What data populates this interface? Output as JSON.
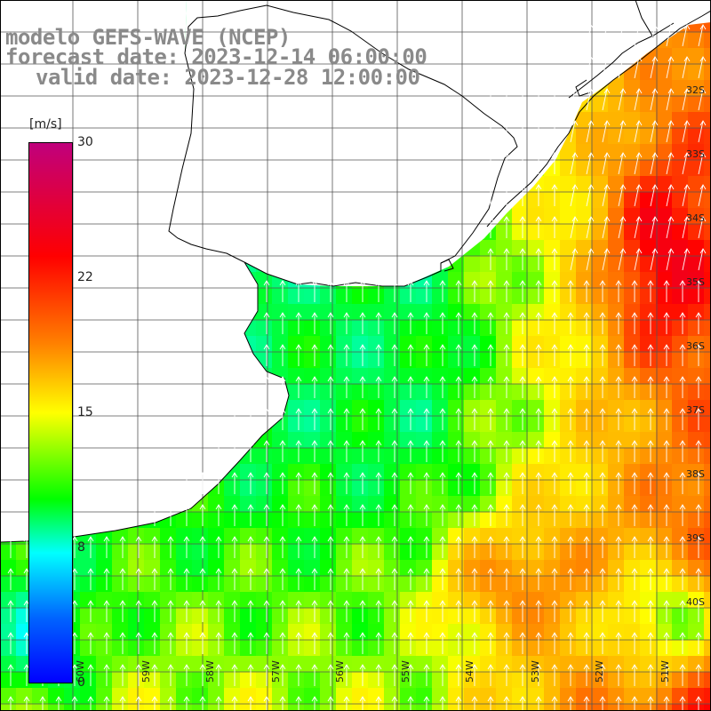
{
  "title": {
    "line1": "modelo GEFS-WAVE (NCEP)",
    "line2": "forecast date: 2023-12-14 06:00:00",
    "line3": "valid date: 2023-12-28 12:00:00"
  },
  "colorbar": {
    "units": "[m/s]",
    "ticks": [
      "30",
      "22",
      "15",
      "8",
      "0"
    ],
    "tick_values": [
      30,
      22,
      15,
      8,
      0
    ],
    "colors": [
      "#0000ff",
      "#0064ff",
      "#00ffff",
      "#00ff00",
      "#ffff00",
      "#ff7f00",
      "#ff0000",
      "#c0007c"
    ]
  },
  "lat_labels": [
    "32S",
    "33S",
    "34S",
    "35S",
    "36S",
    "37S",
    "38S",
    "39S",
    "40S"
  ],
  "lon_labels": [
    "60W",
    "59W",
    "58W",
    "57W",
    "56W",
    "55W",
    "54W",
    "53W",
    "52W",
    "51W"
  ],
  "map": {
    "field": "wind speed",
    "arrow_color": "#ffffff",
    "land_color": "#ffffff",
    "grid_color": "#555555",
    "coast_color": "#000000"
  }
}
